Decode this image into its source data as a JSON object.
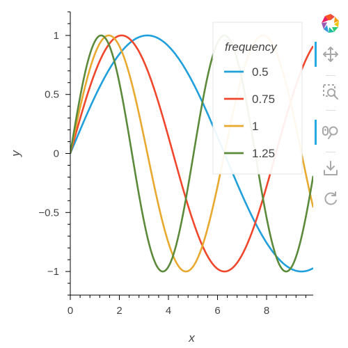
{
  "chart_data": {
    "type": "line",
    "xlabel": "x",
    "ylabel": "y",
    "xlim": [
      0,
      9.9
    ],
    "ylim": [
      -1.2,
      1.2
    ],
    "x_ticks": [
      0,
      2,
      4,
      6,
      8
    ],
    "x_tick_labels": [
      "0",
      "2",
      "4",
      "6",
      "8"
    ],
    "y_ticks": [
      -1,
      -0.5,
      0,
      0.5,
      1
    ],
    "y_tick_labels": [
      "−1",
      "−0.5",
      "0",
      "0.5",
      "1"
    ],
    "function": "sin(frequency * x)",
    "x_range": [
      0,
      9.9
    ],
    "legend": {
      "title": "frequency",
      "placement": "top-right"
    },
    "series": [
      {
        "name": "0.5",
        "frequency": 0.5,
        "color": "#1f9fdb"
      },
      {
        "name": "0.75",
        "frequency": 0.75,
        "color": "#f0462c"
      },
      {
        "name": "1",
        "frequency": 1,
        "color": "#e8a92e"
      },
      {
        "name": "1.25",
        "frequency": 1.25,
        "color": "#5c8a3b"
      }
    ]
  },
  "toolbar": {
    "logo_icon": "bokeh-logo-icon",
    "tools": [
      {
        "name": "pan-icon",
        "active": true
      },
      {
        "name": "box-zoom-icon",
        "active": false
      },
      {
        "name": "wheel-zoom-icon",
        "active": true
      },
      {
        "name": "save-icon",
        "active": false
      },
      {
        "name": "reset-icon",
        "active": false
      }
    ],
    "accent_color": "#26aae1"
  }
}
